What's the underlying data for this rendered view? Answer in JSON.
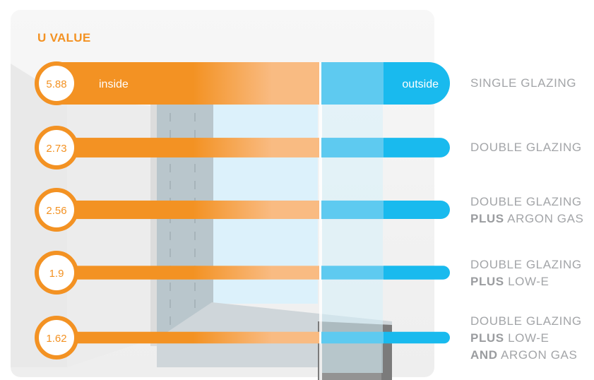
{
  "title": "U VALUE",
  "chart_data": {
    "type": "bar",
    "title": "U VALUE",
    "categories": [
      "SINGLE GLAZING",
      "DOUBLE GLAZING",
      "DOUBLE GLAZING PLUS ARGON GAS",
      "DOUBLE GLAZING PLUS LOW-E",
      "DOUBLE GLAZING PLUS LOW-E AND ARGON GAS"
    ],
    "values": [
      5.88,
      2.73,
      2.56,
      1.9,
      1.62
    ],
    "value_labels": [
      "5.88",
      "2.73",
      "2.56",
      "1.9",
      "1.62"
    ],
    "inner_labels": {
      "left": "inside",
      "right": "outside"
    },
    "category_lines": [
      [
        [
          "",
          "SINGLE GLAZING"
        ]
      ],
      [
        [
          "",
          "DOUBLE GLAZING"
        ]
      ],
      [
        [
          "",
          "DOUBLE GLAZING"
        ],
        [
          "PLUS",
          " ARGON GAS"
        ]
      ],
      [
        [
          "",
          "DOUBLE GLAZING"
        ],
        [
          "PLUS",
          " LOW-E"
        ]
      ],
      [
        [
          "",
          "DOUBLE GLAZING"
        ],
        [
          "PLUS",
          " LOW-E"
        ],
        [
          "AND",
          " ARGON GAS"
        ]
      ]
    ]
  },
  "colors": {
    "accent": "#f39223",
    "inside_light": "#f9bb82",
    "outside_light": "#5ecaf0",
    "outside": "#19baee",
    "label": "#a3a5a8"
  }
}
